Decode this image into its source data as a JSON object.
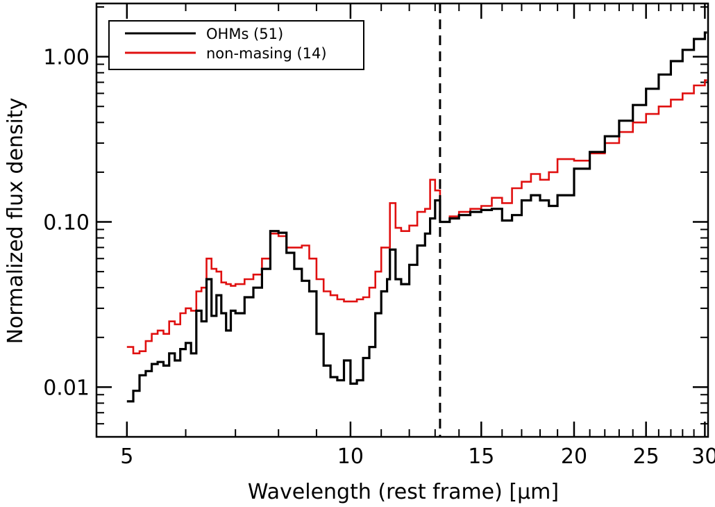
{
  "chart_data": {
    "type": "line",
    "title": "",
    "xlabel": "Wavelength (rest frame) [μm]",
    "ylabel": "Normalized flux density",
    "x_scale": "log",
    "y_scale": "log",
    "xlim": [
      4.55,
      30.3
    ],
    "ylim": [
      0.005,
      2.1
    ],
    "x_ticks": [
      {
        "value": 5,
        "label": "5"
      },
      {
        "value": 10,
        "label": "10"
      },
      {
        "value": 15,
        "label": "15"
      },
      {
        "value": 20,
        "label": "20"
      },
      {
        "value": 25,
        "label": "25"
      },
      {
        "value": 30,
        "label": "30"
      }
    ],
    "y_ticks": [
      {
        "value": 0.01,
        "label": "0.01"
      },
      {
        "value": 0.1,
        "label": "0.10"
      },
      {
        "value": 1.0,
        "label": "1.00"
      }
    ],
    "vline_x": 13.2,
    "legend_position": "top-left",
    "grid": false,
    "series": [
      {
        "name": "OHMs (51)",
        "color": "#000000",
        "x": [
          5.0,
          5.1,
          5.2,
          5.3,
          5.4,
          5.5,
          5.6,
          5.7,
          5.8,
          5.9,
          6.0,
          6.1,
          6.2,
          6.3,
          6.4,
          6.5,
          6.6,
          6.7,
          6.8,
          6.9,
          7.0,
          7.2,
          7.4,
          7.6,
          7.8,
          8.0,
          8.2,
          8.4,
          8.6,
          8.8,
          9.0,
          9.2,
          9.4,
          9.6,
          9.8,
          10.0,
          10.2,
          10.4,
          10.6,
          10.8,
          11.0,
          11.2,
          11.3,
          11.5,
          11.7,
          12.0,
          12.3,
          12.6,
          12.8,
          13.0,
          13.2,
          13.6,
          14.0,
          14.5,
          15.0,
          15.5,
          16.0,
          16.5,
          17.0,
          17.5,
          18.0,
          18.5,
          19.0,
          20.0,
          21.0,
          22.0,
          23.0,
          24.0,
          25.0,
          26.0,
          27.0,
          28.0,
          29.0,
          30.0
        ],
        "values": [
          0.0082,
          0.0095,
          0.0118,
          0.0125,
          0.0138,
          0.0142,
          0.0135,
          0.016,
          0.0145,
          0.017,
          0.0185,
          0.016,
          0.029,
          0.025,
          0.045,
          0.027,
          0.036,
          0.028,
          0.022,
          0.029,
          0.028,
          0.035,
          0.04,
          0.052,
          0.088,
          0.086,
          0.065,
          0.052,
          0.044,
          0.038,
          0.021,
          0.0135,
          0.0115,
          0.011,
          0.0145,
          0.0105,
          0.011,
          0.015,
          0.0175,
          0.028,
          0.038,
          0.045,
          0.068,
          0.045,
          0.042,
          0.055,
          0.072,
          0.085,
          0.105,
          0.135,
          0.1,
          0.105,
          0.11,
          0.115,
          0.118,
          0.12,
          0.102,
          0.11,
          0.135,
          0.145,
          0.135,
          0.125,
          0.145,
          0.21,
          0.265,
          0.33,
          0.41,
          0.51,
          0.64,
          0.78,
          0.94,
          1.1,
          1.28,
          1.4
        ]
      },
      {
        "name": "non-masing (14)",
        "color": "#e01010",
        "x": [
          5.0,
          5.1,
          5.2,
          5.3,
          5.4,
          5.5,
          5.6,
          5.7,
          5.8,
          5.9,
          6.0,
          6.1,
          6.2,
          6.3,
          6.4,
          6.5,
          6.6,
          6.7,
          6.8,
          6.9,
          7.0,
          7.2,
          7.4,
          7.6,
          7.8,
          8.0,
          8.2,
          8.4,
          8.6,
          8.8,
          9.0,
          9.2,
          9.4,
          9.6,
          9.8,
          10.0,
          10.2,
          10.4,
          10.6,
          10.8,
          11.0,
          11.2,
          11.3,
          11.5,
          11.7,
          12.0,
          12.3,
          12.6,
          12.8,
          13.0,
          13.2,
          13.6,
          14.0,
          14.5,
          15.0,
          15.5,
          16.0,
          16.5,
          17.0,
          17.5,
          18.0,
          18.5,
          19.0,
          20.0,
          21.0,
          22.0,
          23.0,
          24.0,
          25.0,
          26.0,
          27.0,
          28.0,
          29.0,
          30.0
        ],
        "values": [
          0.0175,
          0.016,
          0.0165,
          0.019,
          0.021,
          0.022,
          0.021,
          0.025,
          0.024,
          0.028,
          0.03,
          0.029,
          0.038,
          0.04,
          0.06,
          0.052,
          0.05,
          0.043,
          0.042,
          0.041,
          0.042,
          0.045,
          0.048,
          0.06,
          0.085,
          0.082,
          0.07,
          0.07,
          0.072,
          0.06,
          0.045,
          0.038,
          0.036,
          0.034,
          0.033,
          0.033,
          0.034,
          0.035,
          0.04,
          0.05,
          0.07,
          0.07,
          0.13,
          0.092,
          0.088,
          0.095,
          0.115,
          0.12,
          0.18,
          0.155,
          0.1,
          0.108,
          0.115,
          0.12,
          0.125,
          0.14,
          0.13,
          0.16,
          0.175,
          0.195,
          0.18,
          0.2,
          0.24,
          0.235,
          0.26,
          0.3,
          0.35,
          0.4,
          0.45,
          0.5,
          0.55,
          0.6,
          0.67,
          0.72
        ]
      }
    ]
  }
}
